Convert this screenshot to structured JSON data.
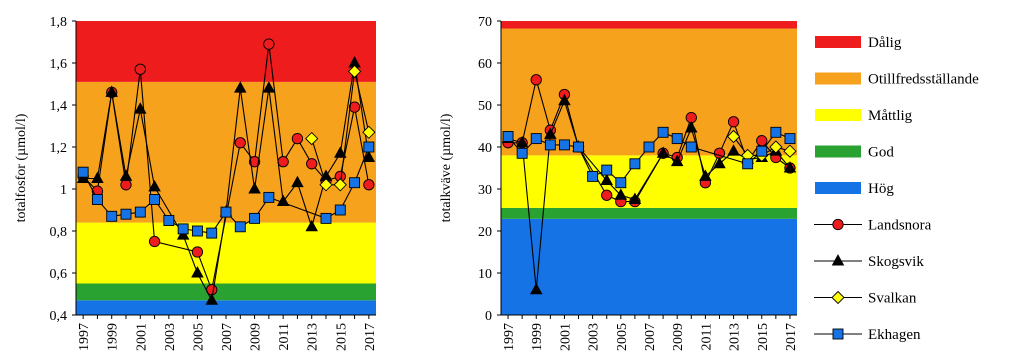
{
  "colors": {
    "Dålig": "#ee1c1c",
    "Otillfredsställande": "#f7a21c",
    "Måttlig": "#ffff00",
    "God": "#2aa232",
    "Hög": "#1673e6"
  },
  "chart_data": [
    {
      "type": "line",
      "ylabel": "totalfosfor (µmol/l)",
      "ylim": [
        0.4,
        1.8
      ],
      "yticks": [
        0.4,
        0.6,
        0.8,
        1,
        1.2,
        1.4,
        1.6,
        1.8
      ],
      "ytick_labels": [
        "0,4",
        "0,6",
        "0,8",
        "1",
        "1,2",
        "1,4",
        "1,6",
        "1,8"
      ],
      "xlim": [
        1996.5,
        2017.5
      ],
      "xtick_labels": [
        "1997",
        "1999",
        "2001",
        "2003",
        "2005",
        "2007",
        "2009",
        "2011",
        "2013",
        "2015",
        "2017"
      ],
      "bands": [
        {
          "name": "Hög",
          "from": 0.4,
          "to": 0.47
        },
        {
          "name": "God",
          "from": 0.47,
          "to": 0.55
        },
        {
          "name": "Måttlig",
          "from": 0.55,
          "to": 0.84
        },
        {
          "name": "Otillfredsställande",
          "from": 0.84,
          "to": 1.51
        },
        {
          "name": "Dålig",
          "from": 1.51,
          "to": 1.8
        }
      ],
      "x": [
        1997,
        1998,
        1999,
        2000,
        2001,
        2002,
        2003,
        2004,
        2005,
        2006,
        2007,
        2008,
        2009,
        2010,
        2011,
        2012,
        2013,
        2014,
        2015,
        2016,
        2017
      ],
      "series": [
        {
          "name": "Landsnora",
          "values": [
            1.06,
            0.99,
            1.46,
            1.02,
            1.57,
            0.75,
            null,
            null,
            0.7,
            0.52,
            null,
            1.22,
            1.13,
            1.69,
            1.13,
            1.24,
            1.12,
            1.04,
            1.06,
            1.39,
            1.02
          ]
        },
        {
          "name": "Skogsvik",
          "values": [
            1.05,
            1.05,
            1.46,
            1.06,
            1.38,
            1.01,
            null,
            0.78,
            0.6,
            0.47,
            0.89,
            1.48,
            1.0,
            1.48,
            0.94,
            1.03,
            0.82,
            1.06,
            1.17,
            1.6,
            1.15
          ]
        },
        {
          "name": "Svalkan",
          "values": [
            null,
            null,
            null,
            null,
            null,
            null,
            null,
            null,
            null,
            null,
            null,
            null,
            null,
            null,
            null,
            null,
            1.24,
            1.02,
            1.02,
            1.56,
            1.27
          ]
        },
        {
          "name": "Ekhagen",
          "values": [
            1.08,
            0.95,
            0.87,
            0.88,
            0.89,
            0.95,
            0.85,
            0.81,
            0.8,
            0.79,
            0.89,
            0.82,
            0.86,
            0.96,
            null,
            null,
            null,
            0.86,
            0.9,
            1.03,
            1.2
          ]
        }
      ]
    },
    {
      "type": "line",
      "ylabel": "totalkväve (µmol/l)",
      "ylim": [
        0,
        70
      ],
      "yticks": [
        0,
        10,
        20,
        30,
        40,
        50,
        60,
        70
      ],
      "ytick_labels": [
        "0",
        "10",
        "20",
        "30",
        "40",
        "50",
        "60",
        "70"
      ],
      "xlim": [
        1996.5,
        2017.5
      ],
      "xtick_labels": [
        "1997",
        "1999",
        "2001",
        "2003",
        "2005",
        "2007",
        "2009",
        "2011",
        "2013",
        "2015",
        "2017"
      ],
      "bands": [
        {
          "name": "Hög",
          "from": 0,
          "to": 22.9
        },
        {
          "name": "God",
          "from": 22.9,
          "to": 25.5
        },
        {
          "name": "Måttlig",
          "from": 25.5,
          "to": 38
        },
        {
          "name": "Otillfredsställande",
          "from": 38,
          "to": 68.2
        },
        {
          "name": "Dålig",
          "from": 68.2,
          "to": 70
        }
      ],
      "x": [
        1997,
        1998,
        1999,
        2000,
        2001,
        2002,
        2003,
        2004,
        2005,
        2006,
        2007,
        2008,
        2009,
        2010,
        2011,
        2012,
        2013,
        2014,
        2015,
        2016,
        2017
      ],
      "series": [
        {
          "name": "Landsnora",
          "values": [
            41,
            41,
            56,
            44,
            52.5,
            40,
            null,
            28.5,
            27,
            27,
            null,
            38.5,
            37.5,
            47,
            31.5,
            38.5,
            46,
            36.5,
            41.5,
            37.5,
            35
          ]
        },
        {
          "name": "Skogsvik",
          "values": [
            42,
            41,
            6,
            43,
            51,
            40,
            null,
            32,
            28.5,
            27.5,
            null,
            38.5,
            36.5,
            44.5,
            33,
            36,
            39,
            37,
            37.5,
            39,
            35
          ]
        },
        {
          "name": "Svalkan",
          "values": [
            null,
            null,
            null,
            null,
            null,
            null,
            null,
            null,
            null,
            null,
            null,
            null,
            null,
            null,
            null,
            null,
            42.5,
            38,
            38,
            40,
            39
          ]
        },
        {
          "name": "Ekhagen",
          "values": [
            42.5,
            38.5,
            42,
            40.5,
            40.5,
            40,
            33,
            34.5,
            31.5,
            36,
            40,
            43.5,
            42,
            40,
            null,
            null,
            null,
            36,
            39,
            43.5,
            42
          ]
        }
      ]
    }
  ],
  "legend": [
    {
      "label": "Dålig",
      "kind": "band"
    },
    {
      "label": "Otillfredsställande",
      "kind": "band"
    },
    {
      "label": "Måttlig",
      "kind": "band"
    },
    {
      "label": "God",
      "kind": "band"
    },
    {
      "label": "Hög",
      "kind": "band"
    },
    {
      "label": "Landsnora",
      "kind": "series",
      "marker": "circle",
      "fill": "#ee1c1c"
    },
    {
      "label": "Skogsvik",
      "kind": "series",
      "marker": "triangle",
      "fill": "#000000"
    },
    {
      "label": "Svalkan",
      "kind": "series",
      "marker": "diamond",
      "fill": "#ffff00"
    },
    {
      "label": "Ekhagen",
      "kind": "series",
      "marker": "square",
      "fill": "#1673e6"
    }
  ]
}
